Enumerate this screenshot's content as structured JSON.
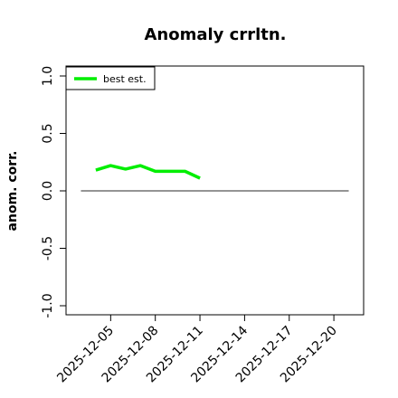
{
  "chart_data": {
    "type": "line",
    "title": "Anomaly crrltn.",
    "xlabel": "",
    "ylabel": "anom. corr.",
    "ylim": [
      -1.0,
      1.0
    ],
    "xlim": [
      "2025-12-02",
      "2025-12-22"
    ],
    "grid": false,
    "legend_position": "top-left",
    "y_ticks": [
      "-1.0",
      "-0.5",
      "0.0",
      "0.5",
      "1.0"
    ],
    "x_ticks": [
      "2025-12-05",
      "2025-12-08",
      "2025-12-11",
      "2025-12-14",
      "2025-12-17",
      "2025-12-20"
    ],
    "reference_line": {
      "y": 0.0,
      "x_start": "2025-12-03",
      "x_end": "2025-12-21",
      "color": "#555555"
    },
    "series": [
      {
        "name": "best est.",
        "color": "#00ee00",
        "x": [
          "2025-12-04",
          "2025-12-05",
          "2025-12-06",
          "2025-12-07",
          "2025-12-08",
          "2025-12-09",
          "2025-12-10",
          "2025-12-11"
        ],
        "y": [
          0.18,
          0.22,
          0.19,
          0.22,
          0.17,
          0.17,
          0.17,
          0.11
        ]
      }
    ]
  }
}
